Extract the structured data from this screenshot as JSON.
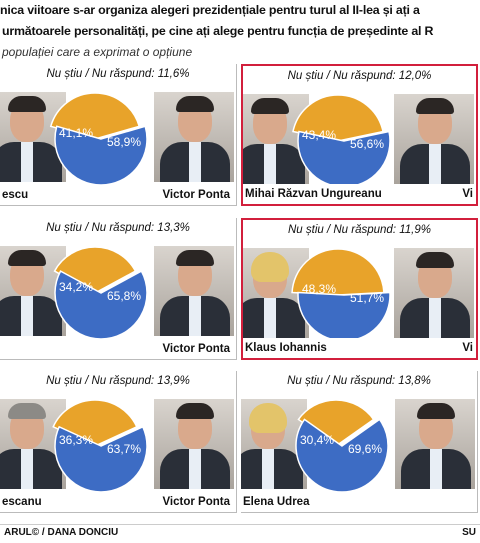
{
  "header": {
    "title_line1": "nica viitoare s-ar organiza alegeri prezidențiale pentru turul al II-lea și ați a",
    "title_line2": "următoarele personalități, pe cine ați alege pentru funcția de președinte al R",
    "subtitle": "populației care a exprimat o opțiune"
  },
  "footer": {
    "credit": "ARUL© / DANA DONCIU",
    "source": "SU"
  },
  "colors": {
    "blue": "#3d6cc4",
    "orange": "#e8a32a",
    "highlight_border": "#d21f3c"
  },
  "chart_data": [
    {
      "type": "pie",
      "no_answer": "Nu știu / Nu răspund: 11,6%",
      "left_name": "escu",
      "right_name": "Victor Ponta",
      "values": [
        41.1,
        58.9
      ],
      "labels": [
        "41,1%",
        "58,9%"
      ]
    },
    {
      "type": "pie",
      "no_answer": "Nu știu / Nu răspund: 12,0%",
      "left_name": "Mihai Răzvan Ungureanu",
      "right_name": "Vi",
      "values": [
        43.4,
        56.6
      ],
      "labels": [
        "43,4%",
        "56,6%"
      ]
    },
    {
      "type": "pie",
      "no_answer": "Nu știu / Nu răspund: 13,3%",
      "left_name": "",
      "right_name": "Victor Ponta",
      "values": [
        34.2,
        65.8
      ],
      "labels": [
        "34,2%",
        "65,8%"
      ]
    },
    {
      "type": "pie",
      "no_answer": "Nu știu / Nu răspund: 11,9%",
      "left_name": "Klaus Iohannis",
      "right_name": "Vi",
      "values": [
        48.3,
        51.7
      ],
      "labels": [
        "48,3%",
        "51,7%"
      ]
    },
    {
      "type": "pie",
      "no_answer": "Nu știu / Nu răspund: 13,9%",
      "left_name": "escanu",
      "right_name": "Victor Ponta",
      "values": [
        36.3,
        63.7
      ],
      "labels": [
        "36,3%",
        "63,7%"
      ]
    },
    {
      "type": "pie",
      "no_answer": "Nu știu / Nu răspund: 13,8%",
      "left_name": "Elena Udrea",
      "right_name": "",
      "values": [
        30.4,
        69.6
      ],
      "labels": [
        "30,4%",
        "69,6%"
      ]
    }
  ]
}
